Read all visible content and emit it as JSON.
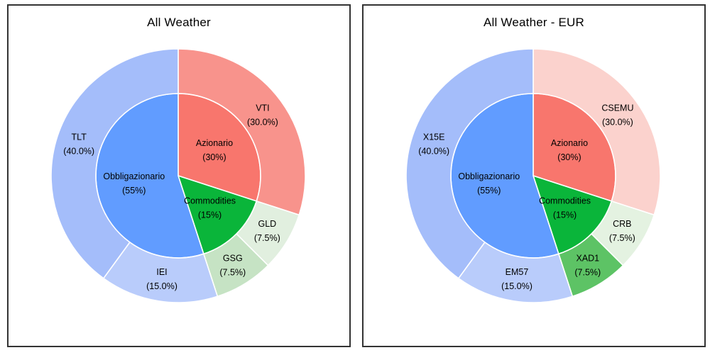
{
  "styles": {
    "background": "#FFFFFF",
    "panel_border": "#333333",
    "separator": "#FFFFFF",
    "label_color": "#000000"
  },
  "chart_data": [
    {
      "type": "pie",
      "subtype": "nested_donut",
      "title": "All Weather",
      "direction": "clockwise",
      "start_angle_deg": 0,
      "legend": "none",
      "rings": [
        {
          "id": "asset_classes",
          "position": "inner",
          "segments": [
            {
              "label": "Azionario",
              "value": 30,
              "display": "(30%)",
              "color": "#F8766D"
            },
            {
              "label": "Commodities",
              "value": 15,
              "display": "(15%)",
              "color": "#0AB53A"
            },
            {
              "label": "Obbligazionario",
              "value": 55,
              "display": "(55%)",
              "color": "#619CFF"
            }
          ]
        },
        {
          "id": "instruments",
          "position": "outer",
          "segments": [
            {
              "label": "VTI",
              "value": 30,
              "display": "(30.0%)",
              "color": "#F8938C"
            },
            {
              "label": "GLD",
              "value": 7.5,
              "display": "(7.5%)",
              "color": "#E1EFDF"
            },
            {
              "label": "GSG",
              "value": 7.5,
              "display": "(7.5%)",
              "color": "#C6E3C4"
            },
            {
              "label": "IEI",
              "value": 15,
              "display": "(15.0%)",
              "color": "#B9CCFB"
            },
            {
              "label": "TLT",
              "value": 40,
              "display": "(40.0%)",
              "color": "#A4BDFA"
            }
          ]
        }
      ]
    },
    {
      "type": "pie",
      "subtype": "nested_donut",
      "title": "All Weather - EUR",
      "direction": "clockwise",
      "start_angle_deg": 0,
      "legend": "none",
      "rings": [
        {
          "id": "asset_classes",
          "position": "inner",
          "segments": [
            {
              "label": "Azionario",
              "value": 30,
              "display": "(30%)",
              "color": "#F8766D"
            },
            {
              "label": "Commodities",
              "value": 15,
              "display": "(15%)",
              "color": "#0AB53A"
            },
            {
              "label": "Obbligazionario",
              "value": 55,
              "display": "(55%)",
              "color": "#619CFF"
            }
          ]
        },
        {
          "id": "instruments",
          "position": "outer",
          "segments": [
            {
              "label": "CSEMU",
              "value": 30,
              "display": "(30.0%)",
              "color": "#FBD2CD"
            },
            {
              "label": "CRB",
              "value": 7.5,
              "display": "(7.5%)",
              "color": "#E4F2E1"
            },
            {
              "label": "XAD1",
              "value": 7.5,
              "display": "(7.5%)",
              "color": "#5DC365"
            },
            {
              "label": "EM57",
              "value": 15,
              "display": "(15.0%)",
              "color": "#B9CCFB"
            },
            {
              "label": "X15E",
              "value": 40,
              "display": "(40.0%)",
              "color": "#A4BDFA"
            }
          ]
        }
      ]
    }
  ]
}
